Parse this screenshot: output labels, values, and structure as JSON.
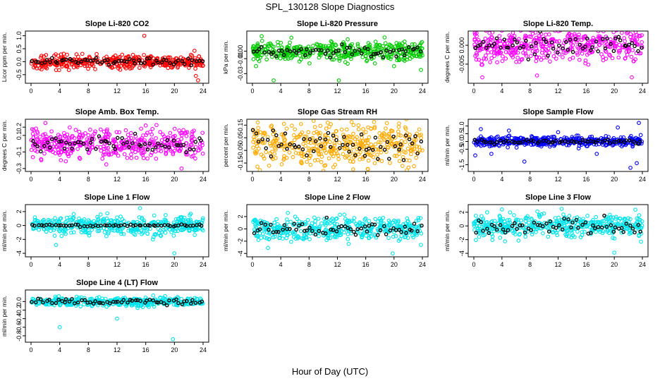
{
  "figure": {
    "title": "SPL_130128  Slope Diagnostics",
    "xlabel": "Hour of Day (UTC)"
  },
  "chart_data": [
    {
      "type": "scatter",
      "title": "Slope Li-820 CO2",
      "ylabel": "Licor ppm per min.",
      "color": "#ff0000",
      "xlim": [
        0,
        24
      ],
      "ylim": [
        -0.75,
        1.1
      ],
      "yticks": [
        -0.5,
        0.0,
        0.5,
        1.0
      ],
      "ytick_labels": [
        "-0.5",
        "0.0",
        "0.5",
        "1.0"
      ],
      "xticks": [
        0,
        4,
        8,
        12,
        16,
        20,
        24
      ],
      "band": 0.17,
      "black_spread": 0.09,
      "outliers": [
        [
          15.8,
          1.0
        ],
        [
          23.3,
          -0.72
        ],
        [
          23.0,
          -0.55
        ],
        [
          22.8,
          0.42
        ]
      ]
    },
    {
      "type": "scatter",
      "title": "Slope Li-820 Pressure",
      "ylabel": "kPa per min.",
      "color": "#00cc00",
      "xlim": [
        0,
        24
      ],
      "ylim": [
        -0.04,
        0.024
      ],
      "yticks": [
        -0.03,
        -0.01,
        0.0
      ],
      "ytick_labels": [
        "-0.03",
        "-0.01",
        "0.00"
      ],
      "xticks": [
        0,
        4,
        8,
        12,
        16,
        20,
        24
      ],
      "band": 0.009,
      "black_spread": 0.005,
      "outliers": [
        [
          0.5,
          -0.02
        ],
        [
          1.3,
          0.02
        ],
        [
          3.0,
          -0.039
        ],
        [
          5.5,
          0.018
        ],
        [
          12.2,
          -0.039
        ],
        [
          20.0,
          -0.02
        ],
        [
          23.8,
          -0.025
        ],
        [
          16.2,
          -0.012
        ]
      ]
    },
    {
      "type": "scatter",
      "title": "Slope Li-820 Temp.",
      "ylabel": "degrees C per min.",
      "color": "#ff00ff",
      "xlim": [
        0,
        24
      ],
      "ylim": [
        -0.0095,
        0.0032
      ],
      "yticks": [
        -0.005,
        0.0
      ],
      "ytick_labels": [
        "-0.005",
        "0.000"
      ],
      "xticks": [
        0,
        4,
        8,
        12,
        16,
        20,
        24
      ],
      "band": 0.0028,
      "black_spread": 0.0018,
      "outliers": [
        [
          23.5,
          0.0025
        ],
        [
          1.2,
          -0.0085
        ],
        [
          9.0,
          -0.008
        ],
        [
          22.5,
          -0.0085
        ]
      ]
    },
    {
      "type": "scatter",
      "title": "Slope Amb. Box Temp.",
      "ylabel": "degrees C per min.",
      "color": "#ff00ff",
      "xlim": [
        0,
        24
      ],
      "ylim": [
        -0.31,
        0.27
      ],
      "yticks": [
        -0.3,
        -0.1,
        0.1,
        0.2
      ],
      "ytick_labels": [
        "-0.3",
        "-0.1",
        "0.1",
        "0.2"
      ],
      "xticks": [
        0,
        4,
        8,
        12,
        16,
        20,
        24
      ],
      "band": 0.13,
      "black_spread": 0.07,
      "outliers": [
        [
          2.0,
          0.25
        ],
        [
          10.5,
          -0.25
        ],
        [
          21.0,
          -0.3
        ],
        [
          16.0,
          0.22
        ]
      ]
    },
    {
      "type": "scatter",
      "title": "Slope Gas Stream RH",
      "ylabel": "percent per min.",
      "color": "#ffaa00",
      "xlim": [
        0,
        24
      ],
      "ylim": [
        -0.2,
        0.18
      ],
      "yticks": [
        -0.15,
        -0.05,
        0.05,
        0.15
      ],
      "ytick_labels": [
        "-0.15",
        "-0.05",
        "0.05",
        "0.15"
      ],
      "xticks": [
        0,
        4,
        8,
        12,
        16,
        20,
        24
      ],
      "band": 0.12,
      "black_spread": 0.08,
      "outliers": []
    },
    {
      "type": "scatter",
      "title": "Slope Sample Flow",
      "ylabel": "ml/min per min.",
      "color": "#0000ff",
      "xlim": [
        0,
        24
      ],
      "ylim": [
        -1.8,
        1.3
      ],
      "yticks": [
        -1.5,
        -0.5,
        0.0,
        0.5,
        1.0
      ],
      "ytick_labels": [
        "-1.5",
        "-0.5",
        "0.0",
        "0.5",
        "1.0"
      ],
      "xticks": [
        0,
        4,
        8,
        12,
        16,
        20,
        24
      ],
      "band": 0.22,
      "black_spread": 0.1,
      "outliers": [
        [
          0.2,
          -0.9
        ],
        [
          1.0,
          0.8
        ],
        [
          2.5,
          -0.8
        ],
        [
          5.0,
          0.7
        ],
        [
          7.2,
          -1.3
        ],
        [
          12.0,
          0.6
        ],
        [
          17.5,
          -0.8
        ],
        [
          22.3,
          -1.7
        ],
        [
          23.5,
          1.2
        ],
        [
          23.2,
          -1.4
        ],
        [
          20.5,
          0.9
        ]
      ]
    },
    {
      "type": "scatter",
      "title": "Slope Line 1 Flow",
      "ylabel": "ml/min per min.",
      "color": "#00e5ee",
      "xlim": [
        0,
        24
      ],
      "ylim": [
        -4.2,
        2.7
      ],
      "yticks": [
        -4,
        -2,
        0,
        2
      ],
      "ytick_labels": [
        "-4",
        "-2",
        "0",
        "2"
      ],
      "xticks": [
        0,
        4,
        8,
        12,
        16,
        20,
        24
      ],
      "band": 0.9,
      "black_spread": 0.1,
      "outliers": [
        [
          20.0,
          -4.0
        ],
        [
          15.2,
          2.5
        ],
        [
          3.5,
          -2.8
        ],
        [
          17.0,
          -2.0
        ]
      ]
    },
    {
      "type": "scatter",
      "title": "Slope Line 2 Flow",
      "ylabel": "ml/min per min.",
      "color": "#00e5ee",
      "xlim": [
        0,
        24
      ],
      "ylim": [
        -4.2,
        3.6
      ],
      "yticks": [
        -4,
        -2,
        0,
        2
      ],
      "ytick_labels": [
        "-4",
        "-2",
        "0",
        "2"
      ],
      "xticks": [
        0,
        4,
        8,
        12,
        16,
        20,
        24
      ],
      "band": 1.2,
      "black_spread": 0.9,
      "outliers": [
        [
          19.8,
          -4.0
        ],
        [
          23.8,
          -2.6
        ],
        [
          2.2,
          -3.1
        ],
        [
          5.0,
          2.6
        ]
      ]
    },
    {
      "type": "scatter",
      "title": "Slope Line 3 Flow",
      "ylabel": "ml/min per min.",
      "color": "#00e5ee",
      "xlim": [
        0,
        24
      ],
      "ylim": [
        -4.2,
        2.8
      ],
      "yticks": [
        -4,
        -2,
        0,
        2
      ],
      "ytick_labels": [
        "-4",
        "-2",
        "0",
        "2"
      ],
      "xticks": [
        0,
        4,
        8,
        12,
        16,
        20,
        24
      ],
      "band": 1.1,
      "black_spread": 0.9,
      "outliers": [
        [
          20.0,
          -3.9
        ],
        [
          23.8,
          -2.3
        ],
        [
          4.0,
          2.4
        ],
        [
          12.5,
          2.5
        ]
      ]
    },
    {
      "type": "scatter",
      "title": "Slope Line 4 (LT) Flow",
      "ylabel": "ml/min per min.",
      "color": "#00e5ee",
      "xlim": [
        0,
        24
      ],
      "ylim": [
        -0.9,
        0.22
      ],
      "yticks": [
        -0.8,
        -0.6,
        -0.4,
        -0.2,
        0.0
      ],
      "ytick_labels": [
        "-0.8",
        "-0.6",
        "-0.4",
        "-0.2",
        "0.0"
      ],
      "xticks": [
        0,
        4,
        8,
        12,
        16,
        20,
        24
      ],
      "band": 0.07,
      "black_spread": 0.05,
      "outliers": [
        [
          4.0,
          -0.6
        ],
        [
          12.0,
          -0.4
        ],
        [
          19.8,
          -0.88
        ]
      ]
    }
  ]
}
